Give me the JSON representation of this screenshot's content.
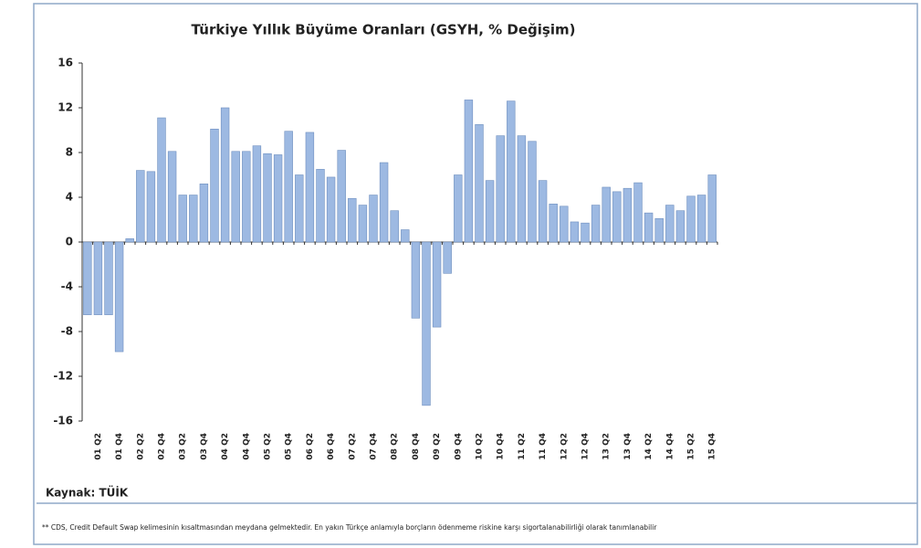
{
  "chart_data": {
    "type": "bar",
    "title": "Türkiye Yıllık Büyüme Oranları (GSYH, % Değişim)",
    "categories": [
      null,
      "01 Q2",
      null,
      "01 Q4",
      null,
      "02 Q2",
      null,
      "02 Q4",
      null,
      "03 Q2",
      null,
      "03 Q4",
      null,
      "04 Q2",
      null,
      "04 Q4",
      null,
      "05 Q2",
      null,
      "05 Q4",
      null,
      "06 Q2",
      null,
      "06 Q4",
      null,
      "07 Q2",
      null,
      "07 Q4",
      null,
      "08 Q2",
      null,
      "08 Q4",
      null,
      "09 Q2",
      null,
      "09 Q4",
      null,
      "10 Q2",
      null,
      "10 Q4",
      null,
      "11 Q2",
      null,
      "11 Q4",
      null,
      "12 Q2",
      null,
      "12 Q4",
      null,
      "13 Q2",
      null,
      "13 Q4",
      null,
      "14 Q2",
      null,
      "14 Q4",
      null,
      "15 Q2",
      null,
      "15 Q4"
    ],
    "values": [
      -6.5,
      -6.5,
      -6.5,
      -9.8,
      0.3,
      6.4,
      6.3,
      11.1,
      8.1,
      4.2,
      4.2,
      5.2,
      10.1,
      12.0,
      8.1,
      8.1,
      8.6,
      7.9,
      7.8,
      9.9,
      6.0,
      9.8,
      6.5,
      5.8,
      8.2,
      3.9,
      3.3,
      4.2,
      7.1,
      2.8,
      1.1,
      -6.8,
      -14.6,
      -7.6,
      -2.8,
      6.0,
      12.7,
      10.5,
      5.5,
      9.5,
      12.6,
      9.5,
      9.0,
      5.5,
      3.4,
      3.2,
      1.8,
      1.7,
      3.3,
      4.9,
      4.5,
      4.8,
      5.3,
      2.6,
      2.1,
      3.3,
      2.8,
      4.1,
      4.2,
      6.0
    ],
    "color": "#9db9e2",
    "ylim": [
      -16,
      16
    ],
    "yticks": [
      -16,
      -12,
      -8,
      -4,
      0,
      4,
      8,
      12,
      16
    ],
    "grid": false,
    "source": "Kaynak: TÜİK",
    "footnote": "** CDS, Credit Default Swap kelimesinin kısaltmasından meydana gelmektedir. En yakın Türkçe anlamıyla borçların ödenmeme riskine karşı sigortalanabilirliği olarak tanımlanabilir"
  }
}
